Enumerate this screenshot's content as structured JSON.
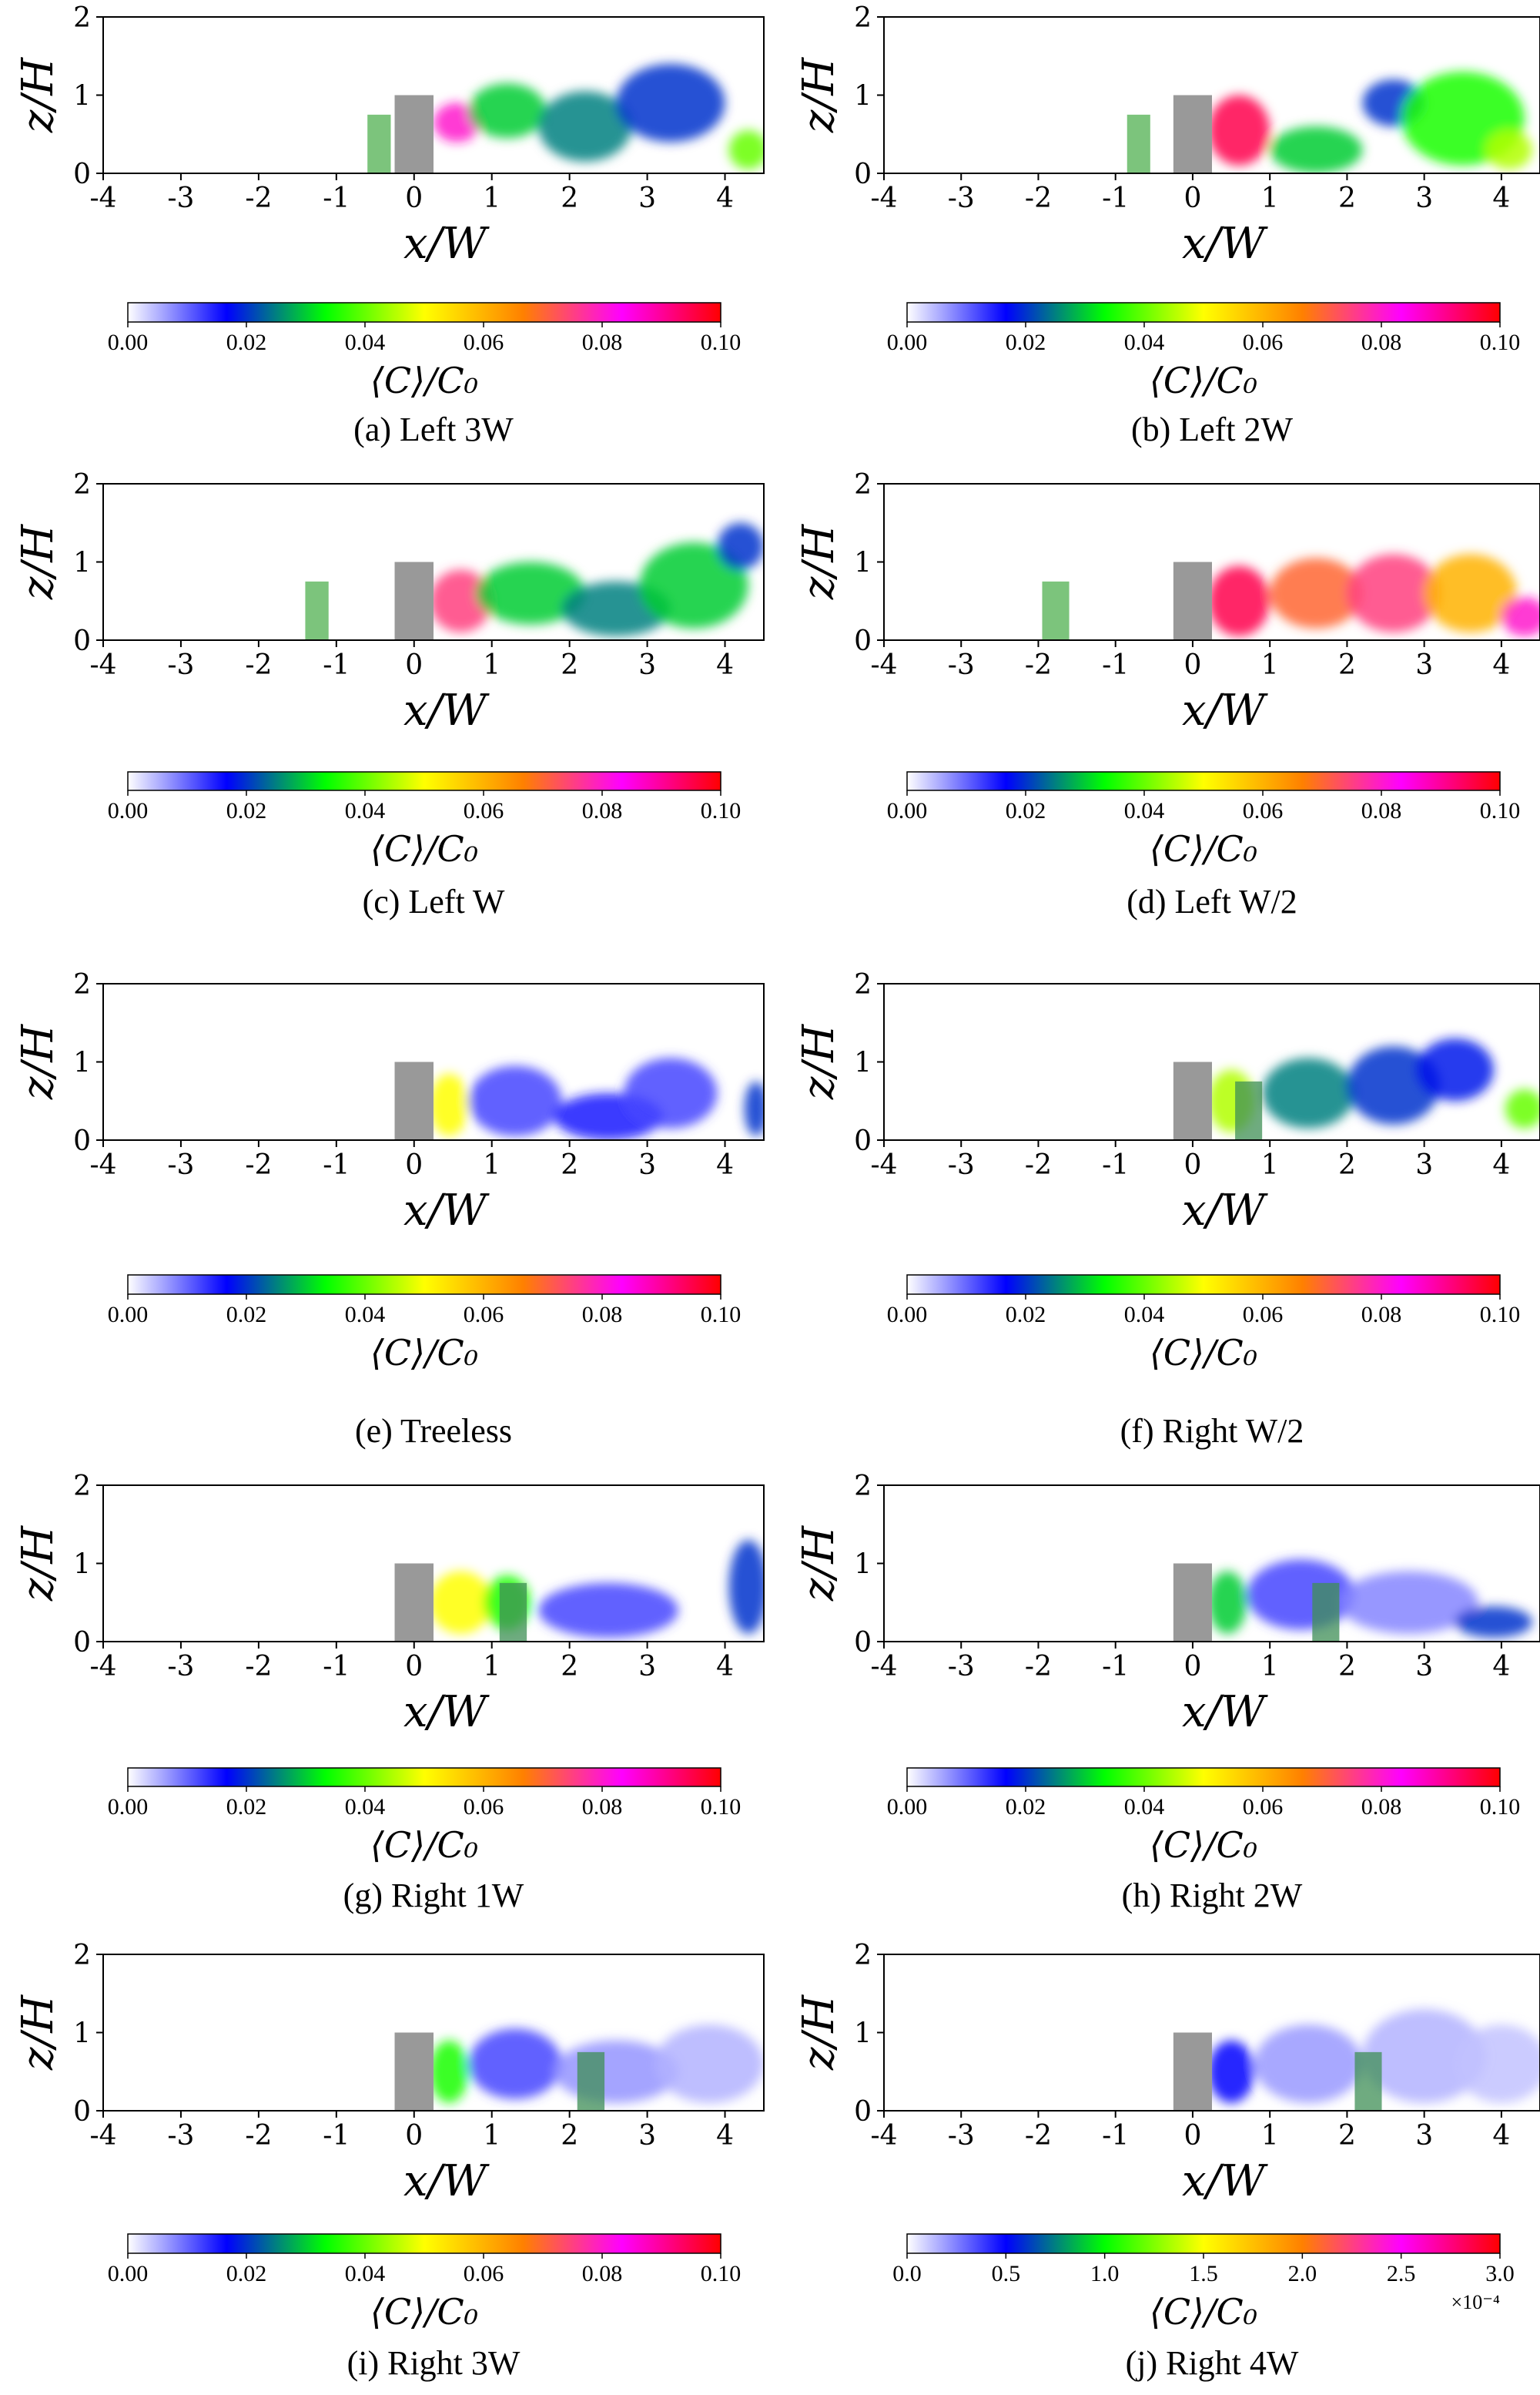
{
  "figure": {
    "colormap": [
      "#ffffff",
      "#0000ff",
      "#00ff00",
      "#ffff00",
      "#ff8000",
      "#ff00ff",
      "#ff0000"
    ]
  },
  "chart_data": [
    {
      "id": "a",
      "type": "heatmap",
      "caption": "(a) Left 3W",
      "xlabel": "x/W",
      "ylabel": "z/H",
      "xlim": [
        -4,
        4.5
      ],
      "ylim": [
        0,
        2
      ],
      "xticks": [
        "-4",
        "-3",
        "-2",
        "-1",
        "0",
        "1",
        "2",
        "3",
        "4"
      ],
      "yticks": [
        "0",
        "1",
        "2"
      ],
      "building": {
        "x": [
          -0.25,
          0.25
        ],
        "z": [
          0,
          1
        ]
      },
      "tree": {
        "x": [
          -0.6,
          -0.3
        ],
        "z": [
          0,
          0.75
        ],
        "position": "upstream"
      },
      "colorbar": {
        "label": "⟨C⟩/C₀",
        "range": [
          0,
          0.1
        ],
        "ticks": [
          "0.00",
          "0.02",
          "0.04",
          "0.06",
          "0.08",
          "0.10"
        ],
        "multiplier": ""
      },
      "plumes": [
        {
          "x": 0.55,
          "z": 0.65,
          "rx": 0.3,
          "rz": 0.25,
          "c": 0.08
        },
        {
          "x": 1.2,
          "z": 0.8,
          "rx": 0.5,
          "rz": 0.35,
          "c": 0.03
        },
        {
          "x": 2.2,
          "z": 0.6,
          "rx": 0.6,
          "rz": 0.45,
          "c": 0.025
        },
        {
          "x": 3.3,
          "z": 0.9,
          "rx": 0.7,
          "rz": 0.5,
          "c": 0.02
        },
        {
          "x": 4.3,
          "z": 0.3,
          "rx": 0.25,
          "rz": 0.25,
          "c": 0.04
        }
      ]
    },
    {
      "id": "b",
      "type": "heatmap",
      "caption": "(b) Left 2W",
      "xlabel": "x/W",
      "ylabel": "z/H",
      "xlim": [
        -4,
        4.5
      ],
      "ylim": [
        0,
        2
      ],
      "xticks": [
        "-4",
        "-3",
        "-2",
        "-1",
        "0",
        "1",
        "2",
        "3",
        "4"
      ],
      "yticks": [
        "0",
        "1",
        "2"
      ],
      "building": {
        "x": [
          -0.25,
          0.25
        ],
        "z": [
          0,
          1
        ]
      },
      "tree": {
        "x": [
          -0.85,
          -0.55
        ],
        "z": [
          0,
          0.75
        ],
        "position": "upstream"
      },
      "colorbar": {
        "label": "⟨C⟩/C₀",
        "range": [
          0,
          0.1
        ],
        "ticks": [
          "0.00",
          "0.02",
          "0.04",
          "0.06",
          "0.08",
          "0.10"
        ],
        "multiplier": ""
      },
      "plumes": [
        {
          "x": 0.6,
          "z": 0.55,
          "rx": 0.4,
          "rz": 0.45,
          "c": 0.095
        },
        {
          "x": 1.6,
          "z": 0.3,
          "rx": 0.6,
          "rz": 0.3,
          "c": 0.03
        },
        {
          "x": 2.6,
          "z": 0.9,
          "rx": 0.4,
          "rz": 0.3,
          "c": 0.02
        },
        {
          "x": 3.5,
          "z": 0.7,
          "rx": 0.8,
          "rz": 0.6,
          "c": 0.035
        },
        {
          "x": 4.1,
          "z": 0.3,
          "rx": 0.3,
          "rz": 0.25,
          "c": 0.045
        }
      ]
    },
    {
      "id": "c",
      "type": "heatmap",
      "caption": "(c) Left W",
      "xlabel": "x/W",
      "ylabel": "z/H",
      "xlim": [
        -4,
        4.5
      ],
      "ylim": [
        0,
        2
      ],
      "xticks": [
        "-4",
        "-3",
        "-2",
        "-1",
        "0",
        "1",
        "2",
        "3",
        "4"
      ],
      "yticks": [
        "0",
        "1",
        "2"
      ],
      "building": {
        "x": [
          -0.25,
          0.25
        ],
        "z": [
          0,
          1
        ]
      },
      "tree": {
        "x": [
          -1.4,
          -1.1
        ],
        "z": [
          0,
          0.75
        ],
        "position": "upstream"
      },
      "colorbar": {
        "label": "⟨C⟩/C₀",
        "range": [
          0,
          0.1
        ],
        "ticks": [
          "0.00",
          "0.02",
          "0.04",
          "0.06",
          "0.08",
          "0.10"
        ],
        "multiplier": ""
      },
      "plumes": [
        {
          "x": 0.6,
          "z": 0.5,
          "rx": 0.4,
          "rz": 0.4,
          "c": 0.075
        },
        {
          "x": 1.5,
          "z": 0.6,
          "rx": 0.7,
          "rz": 0.4,
          "c": 0.03
        },
        {
          "x": 2.6,
          "z": 0.4,
          "rx": 0.7,
          "rz": 0.35,
          "c": 0.025
        },
        {
          "x": 3.6,
          "z": 0.7,
          "rx": 0.7,
          "rz": 0.55,
          "c": 0.03
        },
        {
          "x": 4.2,
          "z": 1.2,
          "rx": 0.3,
          "rz": 0.3,
          "c": 0.02
        }
      ]
    },
    {
      "id": "d",
      "type": "heatmap",
      "caption": "(d) Left W/2",
      "xlabel": "x/W",
      "ylabel": "z/H",
      "xlim": [
        -4,
        4.5
      ],
      "ylim": [
        0,
        2
      ],
      "xticks": [
        "-4",
        "-3",
        "-2",
        "-1",
        "0",
        "1",
        "2",
        "3",
        "4"
      ],
      "yticks": [
        "0",
        "1",
        "2"
      ],
      "building": {
        "x": [
          -0.25,
          0.25
        ],
        "z": [
          0,
          1
        ]
      },
      "tree": {
        "x": [
          -1.95,
          -1.6
        ],
        "z": [
          0,
          0.75
        ],
        "position": "upstream"
      },
      "colorbar": {
        "label": "⟨C⟩/C₀",
        "range": [
          0,
          0.1
        ],
        "ticks": [
          "0.00",
          "0.02",
          "0.04",
          "0.06",
          "0.08",
          "0.10"
        ],
        "multiplier": ""
      },
      "plumes": [
        {
          "x": 0.6,
          "z": 0.5,
          "rx": 0.4,
          "rz": 0.45,
          "c": 0.095
        },
        {
          "x": 1.6,
          "z": 0.6,
          "rx": 0.6,
          "rz": 0.45,
          "c": 0.07
        },
        {
          "x": 2.6,
          "z": 0.6,
          "rx": 0.6,
          "rz": 0.5,
          "c": 0.075
        },
        {
          "x": 3.6,
          "z": 0.6,
          "rx": 0.6,
          "rz": 0.5,
          "c": 0.06
        },
        {
          "x": 4.3,
          "z": 0.3,
          "rx": 0.3,
          "rz": 0.25,
          "c": 0.08
        }
      ]
    },
    {
      "id": "e",
      "type": "heatmap",
      "caption": "(e) Treeless",
      "xlabel": "x/W",
      "ylabel": "z/H",
      "xlim": [
        -4,
        4.5
      ],
      "ylim": [
        0,
        2
      ],
      "xticks": [
        "-4",
        "-3",
        "-2",
        "-1",
        "0",
        "1",
        "2",
        "3",
        "4"
      ],
      "yticks": [
        "0",
        "1",
        "2"
      ],
      "building": {
        "x": [
          -0.25,
          0.25
        ],
        "z": [
          0,
          1
        ]
      },
      "tree": null,
      "colorbar": {
        "label": "⟨C⟩/C₀",
        "range": [
          0,
          0.1
        ],
        "ticks": [
          "0.00",
          "0.02",
          "0.04",
          "0.06",
          "0.08",
          "0.10"
        ],
        "multiplier": ""
      },
      "plumes": [
        {
          "x": 0.45,
          "z": 0.45,
          "rx": 0.25,
          "rz": 0.4,
          "c": 0.05
        },
        {
          "x": 1.3,
          "z": 0.5,
          "rx": 0.6,
          "rz": 0.45,
          "c": 0.012
        },
        {
          "x": 2.5,
          "z": 0.3,
          "rx": 0.7,
          "rz": 0.3,
          "c": 0.015
        },
        {
          "x": 3.3,
          "z": 0.6,
          "rx": 0.6,
          "rz": 0.45,
          "c": 0.012
        },
        {
          "x": 4.4,
          "z": 0.4,
          "rx": 0.15,
          "rz": 0.35,
          "c": 0.02
        }
      ]
    },
    {
      "id": "f",
      "type": "heatmap",
      "caption": "(f) Right W/2",
      "xlabel": "x/W",
      "ylabel": "z/H",
      "xlim": [
        -4,
        4.5
      ],
      "ylim": [
        0,
        2
      ],
      "xticks": [
        "-4",
        "-3",
        "-2",
        "-1",
        "0",
        "1",
        "2",
        "3",
        "4"
      ],
      "yticks": [
        "0",
        "1",
        "2"
      ],
      "building": {
        "x": [
          -0.25,
          0.25
        ],
        "z": [
          0,
          1
        ]
      },
      "tree": {
        "x": [
          0.55,
          0.9
        ],
        "z": [
          0,
          0.75
        ],
        "position": "downstream"
      },
      "colorbar": {
        "label": "⟨C⟩/C₀",
        "range": [
          0,
          0.1
        ],
        "ticks": [
          "0.00",
          "0.02",
          "0.04",
          "0.06",
          "0.08",
          "0.10"
        ],
        "multiplier": ""
      },
      "plumes": [
        {
          "x": 0.5,
          "z": 0.5,
          "rx": 0.3,
          "rz": 0.4,
          "c": 0.045
        },
        {
          "x": 1.5,
          "z": 0.6,
          "rx": 0.6,
          "rz": 0.45,
          "c": 0.025
        },
        {
          "x": 2.6,
          "z": 0.7,
          "rx": 0.6,
          "rz": 0.5,
          "c": 0.02
        },
        {
          "x": 3.4,
          "z": 0.9,
          "rx": 0.5,
          "rz": 0.4,
          "c": 0.018
        },
        {
          "x": 4.3,
          "z": 0.4,
          "rx": 0.25,
          "rz": 0.25,
          "c": 0.04
        }
      ]
    },
    {
      "id": "g",
      "type": "heatmap",
      "caption": "(g) Right 1W",
      "xlabel": "x/W",
      "ylabel": "z/H",
      "xlim": [
        -4,
        4.5
      ],
      "ylim": [
        0,
        2
      ],
      "xticks": [
        "-4",
        "-3",
        "-2",
        "-1",
        "0",
        "1",
        "2",
        "3",
        "4"
      ],
      "yticks": [
        "0",
        "1",
        "2"
      ],
      "building": {
        "x": [
          -0.25,
          0.25
        ],
        "z": [
          0,
          1
        ]
      },
      "tree": {
        "x": [
          1.1,
          1.45
        ],
        "z": [
          0,
          0.75
        ],
        "position": "downstream"
      },
      "colorbar": {
        "label": "⟨C⟩/C₀",
        "range": [
          0,
          0.1
        ],
        "ticks": [
          "0.00",
          "0.02",
          "0.04",
          "0.06",
          "0.08",
          "0.10"
        ],
        "multiplier": ""
      },
      "plumes": [
        {
          "x": 0.6,
          "z": 0.5,
          "rx": 0.4,
          "rz": 0.4,
          "c": 0.05
        },
        {
          "x": 1.2,
          "z": 0.5,
          "rx": 0.3,
          "rz": 0.35,
          "c": 0.035
        },
        {
          "x": 2.5,
          "z": 0.4,
          "rx": 0.9,
          "rz": 0.35,
          "c": 0.012
        },
        {
          "x": 4.3,
          "z": 0.7,
          "rx": 0.25,
          "rz": 0.6,
          "c": 0.02
        }
      ]
    },
    {
      "id": "h",
      "type": "heatmap",
      "caption": "(h) Right 2W",
      "xlabel": "x/W",
      "ylabel": "z/H",
      "xlim": [
        -4,
        4.5
      ],
      "ylim": [
        0,
        2
      ],
      "xticks": [
        "-4",
        "-3",
        "-2",
        "-1",
        "0",
        "1",
        "2",
        "3",
        "4"
      ],
      "yticks": [
        "0",
        "1",
        "2"
      ],
      "building": {
        "x": [
          -0.25,
          0.25
        ],
        "z": [
          0,
          1
        ]
      },
      "tree": {
        "x": [
          1.55,
          1.9
        ],
        "z": [
          0,
          0.75
        ],
        "position": "downstream"
      },
      "colorbar": {
        "label": "⟨C⟩/C₀",
        "range": [
          0,
          0.1
        ],
        "ticks": [
          "0.00",
          "0.02",
          "0.04",
          "0.06",
          "0.08",
          "0.10"
        ],
        "multiplier": ""
      },
      "plumes": [
        {
          "x": 0.45,
          "z": 0.5,
          "rx": 0.25,
          "rz": 0.4,
          "c": 0.03
        },
        {
          "x": 1.4,
          "z": 0.6,
          "rx": 0.7,
          "rz": 0.45,
          "c": 0.012
        },
        {
          "x": 2.8,
          "z": 0.5,
          "rx": 0.9,
          "rz": 0.4,
          "c": 0.008
        },
        {
          "x": 3.9,
          "z": 0.25,
          "rx": 0.5,
          "rz": 0.2,
          "c": 0.02
        }
      ]
    },
    {
      "id": "i",
      "type": "heatmap",
      "caption": "(i) Right 3W",
      "xlabel": "x/W",
      "ylabel": "z/H",
      "xlim": [
        -4,
        4.5
      ],
      "ylim": [
        0,
        2
      ],
      "xticks": [
        "-4",
        "-3",
        "-2",
        "-1",
        "0",
        "1",
        "2",
        "3",
        "4"
      ],
      "yticks": [
        "0",
        "1",
        "2"
      ],
      "building": {
        "x": [
          -0.25,
          0.25
        ],
        "z": [
          0,
          1
        ]
      },
      "tree": {
        "x": [
          2.1,
          2.45
        ],
        "z": [
          0,
          0.75
        ],
        "position": "downstream"
      },
      "colorbar": {
        "label": "⟨C⟩/C₀",
        "range": [
          0,
          0.1
        ],
        "ticks": [
          "0.00",
          "0.02",
          "0.04",
          "0.06",
          "0.08",
          "0.10"
        ],
        "multiplier": ""
      },
      "plumes": [
        {
          "x": 0.45,
          "z": 0.5,
          "rx": 0.25,
          "rz": 0.4,
          "c": 0.035
        },
        {
          "x": 1.3,
          "z": 0.6,
          "rx": 0.6,
          "rz": 0.45,
          "c": 0.012
        },
        {
          "x": 2.6,
          "z": 0.5,
          "rx": 0.8,
          "rz": 0.4,
          "c": 0.007
        },
        {
          "x": 3.8,
          "z": 0.6,
          "rx": 0.7,
          "rz": 0.5,
          "c": 0.005
        }
      ]
    },
    {
      "id": "j",
      "type": "heatmap",
      "caption": "(j) Right 4W",
      "xlabel": "x/W",
      "ylabel": "z/H",
      "xlim": [
        -4,
        4.5
      ],
      "ylim": [
        0,
        2
      ],
      "xticks": [
        "-4",
        "-3",
        "-2",
        "-1",
        "0",
        "1",
        "2",
        "3",
        "4"
      ],
      "yticks": [
        "0",
        "1",
        "2"
      ],
      "building": {
        "x": [
          -0.25,
          0.25
        ],
        "z": [
          0,
          1
        ]
      },
      "tree": {
        "x": [
          2.1,
          2.45
        ],
        "z": [
          0,
          0.75
        ],
        "position": "downstream"
      },
      "colorbar": {
        "label": "⟨C⟩/C₀",
        "range": [
          0,
          3.0
        ],
        "ticks": [
          "0.0",
          "0.5",
          "1.0",
          "1.5",
          "2.0",
          "2.5",
          "3.0"
        ],
        "multiplier": "×10⁻⁴"
      },
      "plumes": [
        {
          "x": 0.5,
          "z": 0.5,
          "rx": 0.3,
          "rz": 0.4,
          "c": 0.5
        },
        {
          "x": 1.5,
          "z": 0.6,
          "rx": 0.7,
          "rz": 0.5,
          "c": 0.2
        },
        {
          "x": 3.0,
          "z": 0.7,
          "rx": 0.8,
          "rz": 0.6,
          "c": 0.15
        },
        {
          "x": 4.0,
          "z": 0.6,
          "rx": 0.6,
          "rz": 0.5,
          "c": 0.12
        }
      ]
    }
  ]
}
